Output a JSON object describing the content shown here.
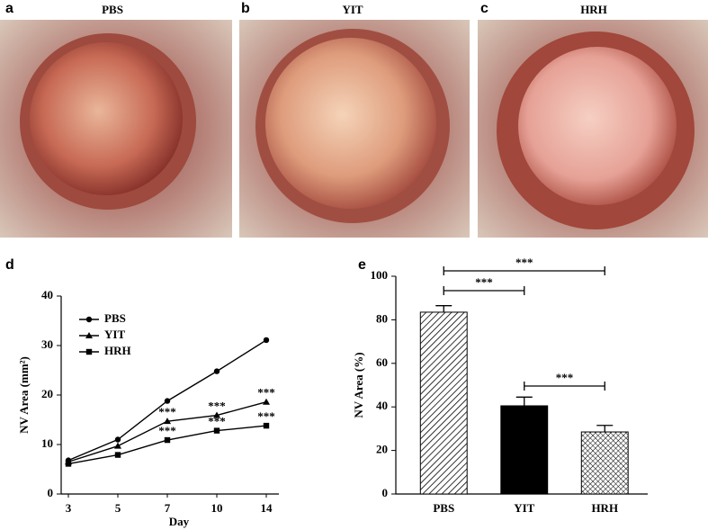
{
  "panels": [
    {
      "label": "a",
      "title": "PBS"
    },
    {
      "label": "b",
      "title": "YIT"
    },
    {
      "label": "c",
      "title": "HRH"
    }
  ],
  "chart_data": [
    {
      "type": "line",
      "panel": "d",
      "x_label": "Day",
      "y_label": "NV Area (mm²)",
      "categories": [
        "3",
        "5",
        "7",
        "10",
        "14"
      ],
      "series": [
        {
          "name": "PBS",
          "color": "#000000",
          "marker": "circle",
          "values": [
            6.8,
            11,
            18.8,
            24.8,
            31.1
          ]
        },
        {
          "name": "YIT",
          "color": "#000000",
          "marker": "triangle",
          "values": [
            6.5,
            9.7,
            14.7,
            15.9,
            18.6
          ],
          "value_labels": [
            null,
            null,
            "***",
            "***",
            "***"
          ]
        },
        {
          "name": "HRH",
          "color": "#000000",
          "marker": "square",
          "values": [
            6.1,
            7.9,
            10.9,
            12.8,
            13.8
          ],
          "value_labels": [
            null,
            null,
            "***",
            "***",
            "***"
          ]
        }
      ],
      "ylim": [
        0,
        40
      ],
      "yticks": [
        0,
        10,
        20,
        30,
        40
      ],
      "legend": "top-left"
    },
    {
      "type": "bar",
      "panel": "e",
      "y_label": "NV Area (%)",
      "categories": [
        "PBS",
        "YIT",
        "HRH"
      ],
      "values": [
        83.5,
        40.5,
        28.5
      ],
      "errors": [
        3,
        4,
        3
      ],
      "colors": [
        "#ffffff",
        "#000000",
        "#ffffff"
      ],
      "hatch": [
        "diagonal",
        "none",
        "crosshatch"
      ],
      "ylim": [
        0,
        100
      ],
      "yticks": [
        0,
        20,
        40,
        60,
        80,
        100
      ],
      "annotations": [
        {
          "text": "***",
          "from": "PBS",
          "to": "YIT"
        },
        {
          "text": "***",
          "from": "PBS",
          "to": "HRH"
        },
        {
          "text": "***",
          "from": "YIT",
          "to": "HRH"
        }
      ]
    }
  ]
}
